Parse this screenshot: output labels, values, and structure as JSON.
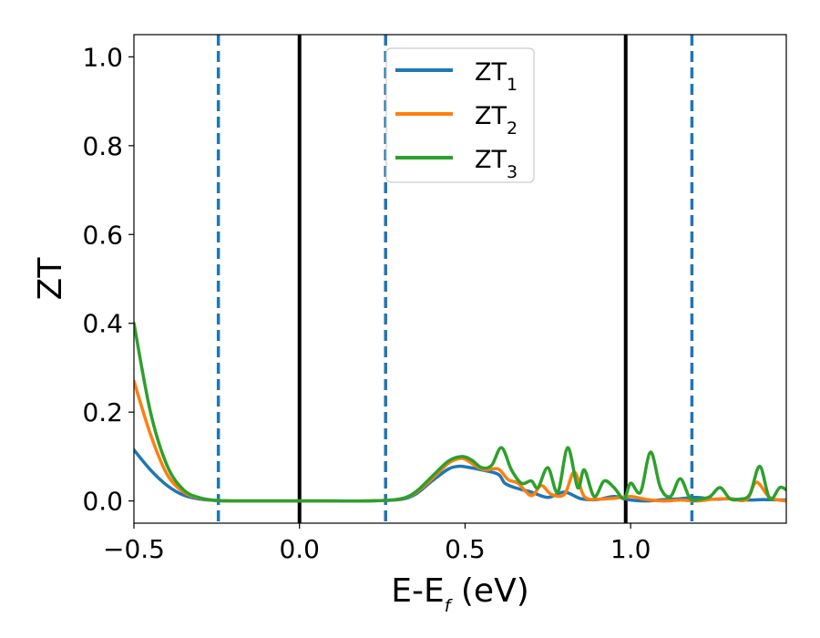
{
  "chart_data": {
    "type": "line",
    "xlabel": "E-E",
    "xlabel_sub": "f",
    "xlabel_unit": " (eV)",
    "ylabel": "ZT",
    "xlim": [
      -0.5,
      1.47
    ],
    "ylim": [
      -0.05,
      1.05
    ],
    "xticks": [
      -0.5,
      0.0,
      0.5,
      1.0
    ],
    "xtick_labels": [
      "−0.5",
      "0.0",
      "0.5",
      "1.0"
    ],
    "yticks": [
      0.0,
      0.2,
      0.4,
      0.6,
      0.8,
      1.0
    ],
    "ytick_labels": [
      "0.0",
      "0.2",
      "0.4",
      "0.6",
      "0.8",
      "1.0"
    ],
    "grid": false,
    "legend_position": "top-center",
    "vlines": [
      {
        "x": -0.245,
        "style": "dashed",
        "color": "#1f77b4"
      },
      {
        "x": 0.0,
        "style": "solid",
        "color": "#000000"
      },
      {
        "x": 0.26,
        "style": "dashed",
        "color": "#1f77b4"
      },
      {
        "x": 0.985,
        "style": "solid",
        "color": "#000000"
      },
      {
        "x": 1.185,
        "style": "dashed",
        "color": "#1f77b4"
      }
    ],
    "series": [
      {
        "name": "ZT",
        "sub": "1",
        "color": "#1f77b4",
        "x": [
          -0.5,
          -0.45,
          -0.4,
          -0.35,
          -0.3,
          -0.25,
          -0.2,
          -0.1,
          0.0,
          0.1,
          0.2,
          0.3,
          0.35,
          0.4,
          0.45,
          0.48,
          0.5,
          0.55,
          0.6,
          0.62,
          0.65,
          0.7,
          0.75,
          0.8,
          0.85,
          0.9,
          0.95,
          1.0,
          1.05,
          1.1,
          1.15,
          1.2,
          1.25,
          1.3,
          1.35,
          1.4,
          1.47
        ],
        "y": [
          0.115,
          0.07,
          0.035,
          0.013,
          0.004,
          0.001,
          0.0,
          0.0,
          0.0,
          0.0,
          0.0,
          0.003,
          0.015,
          0.045,
          0.072,
          0.078,
          0.077,
          0.07,
          0.06,
          0.04,
          0.03,
          0.02,
          0.008,
          0.02,
          0.005,
          0.003,
          0.01,
          0.002,
          0.0,
          0.003,
          0.005,
          0.008,
          0.004,
          0.005,
          0.002,
          0.003,
          0.002
        ]
      },
      {
        "name": "ZT",
        "sub": "2",
        "color": "#ff7f0e",
        "x": [
          -0.5,
          -0.45,
          -0.4,
          -0.35,
          -0.3,
          -0.25,
          -0.2,
          -0.1,
          0.0,
          0.1,
          0.2,
          0.3,
          0.35,
          0.4,
          0.45,
          0.48,
          0.5,
          0.53,
          0.56,
          0.6,
          0.63,
          0.66,
          0.7,
          0.73,
          0.76,
          0.8,
          0.83,
          0.86,
          0.9,
          0.95,
          1.0,
          1.05,
          1.1,
          1.15,
          1.2,
          1.25,
          1.3,
          1.35,
          1.38,
          1.42,
          1.47
        ],
        "y": [
          0.27,
          0.15,
          0.06,
          0.02,
          0.006,
          0.001,
          0.0,
          0.0,
          0.0,
          0.0,
          0.0,
          0.004,
          0.018,
          0.05,
          0.085,
          0.095,
          0.094,
          0.08,
          0.07,
          0.072,
          0.048,
          0.04,
          0.012,
          0.035,
          0.015,
          0.015,
          0.065,
          0.01,
          0.004,
          0.006,
          0.01,
          0.003,
          0.0,
          0.002,
          0.0,
          0.004,
          0.005,
          0.003,
          0.042,
          0.008,
          0.0
        ]
      },
      {
        "name": "ZT",
        "sub": "3",
        "color": "#2ca02c",
        "x": [
          -0.5,
          -0.45,
          -0.4,
          -0.35,
          -0.3,
          -0.25,
          -0.2,
          -0.1,
          0.0,
          0.1,
          0.2,
          0.3,
          0.35,
          0.4,
          0.45,
          0.49,
          0.52,
          0.55,
          0.58,
          0.61,
          0.64,
          0.67,
          0.7,
          0.72,
          0.75,
          0.78,
          0.81,
          0.84,
          0.86,
          0.89,
          0.92,
          0.95,
          0.98,
          1.0,
          1.03,
          1.06,
          1.09,
          1.12,
          1.15,
          1.18,
          1.21,
          1.24,
          1.27,
          1.3,
          1.33,
          1.36,
          1.39,
          1.42,
          1.45,
          1.47
        ],
        "y": [
          0.4,
          0.2,
          0.08,
          0.025,
          0.007,
          0.001,
          0.0,
          0.0,
          0.0,
          0.0,
          0.0,
          0.004,
          0.02,
          0.055,
          0.09,
          0.1,
          0.092,
          0.075,
          0.08,
          0.12,
          0.07,
          0.04,
          0.045,
          0.03,
          0.075,
          0.02,
          0.12,
          0.03,
          0.07,
          0.01,
          0.045,
          0.03,
          0.005,
          0.04,
          0.02,
          0.11,
          0.03,
          0.01,
          0.05,
          0.005,
          0.004,
          0.01,
          0.03,
          0.005,
          0.004,
          0.015,
          0.078,
          0.005,
          0.03,
          0.025
        ]
      }
    ]
  }
}
